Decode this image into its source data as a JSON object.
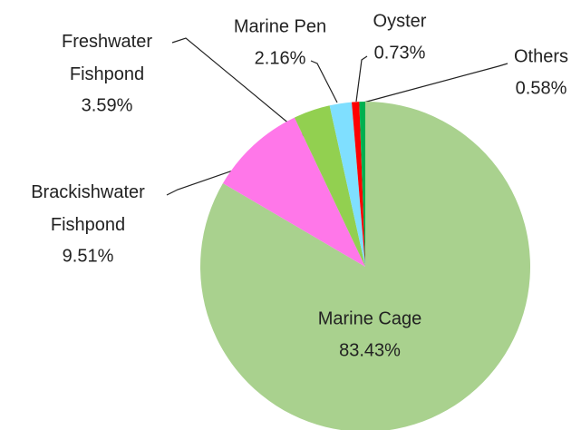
{
  "chart_data": {
    "type": "pie",
    "categories": [
      "Marine Cage",
      "Brackishwater Fishpond",
      "Freshwater Fishpond",
      "Marine Pen",
      "Oyster",
      "Others"
    ],
    "values": [
      83.43,
      9.51,
      3.59,
      2.16,
      0.73,
      0.58
    ],
    "value_labels": [
      "83.43%",
      "9.51%",
      "3.59%",
      "2.16%",
      "0.73%",
      "0.58%"
    ],
    "colors": [
      "#a9d18e",
      "#ff77e9",
      "#92d050",
      "#7fdfff",
      "#ff0000",
      "#00b050"
    ]
  }
}
